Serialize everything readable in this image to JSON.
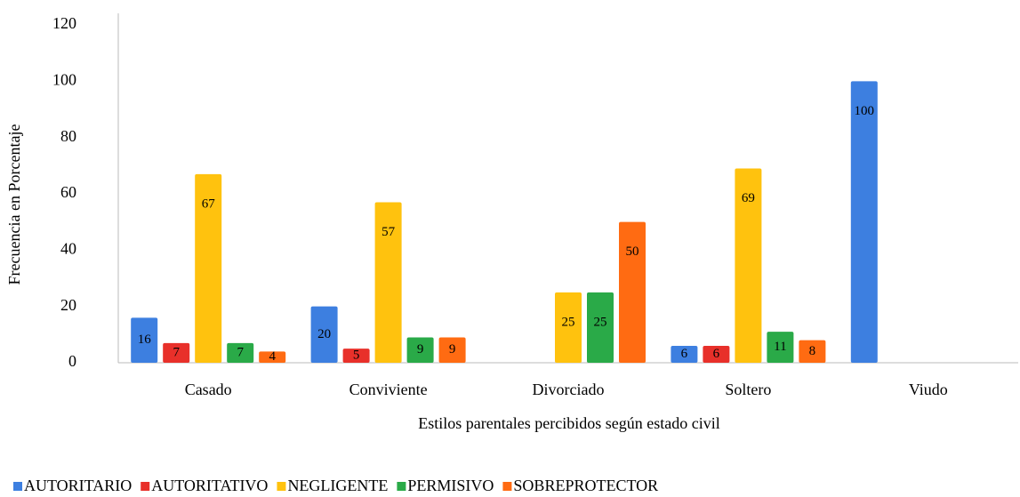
{
  "chart_data": {
    "type": "bar",
    "x_label": "Estilos parentales percibidos según estado civil",
    "y_label": "Frecuencia en Porcentaje",
    "categories": [
      "Casado",
      "Conviviente",
      "Divorciado",
      "Soltero",
      "Viudo"
    ],
    "series": [
      {
        "name": "AUTORITARIO",
        "color": "#3d7fe0",
        "values": [
          16,
          20,
          null,
          6,
          100
        ]
      },
      {
        "name": "AUTORITATIVO",
        "color": "#e8302a",
        "values": [
          7,
          5,
          null,
          6,
          null
        ]
      },
      {
        "name": "NEGLIGENTE",
        "color": "#ffc20e",
        "values": [
          67,
          57,
          25,
          69,
          null
        ]
      },
      {
        "name": "PERMISIVO",
        "color": "#2aaa48",
        "values": [
          7,
          9,
          25,
          11,
          null
        ]
      },
      {
        "name": "SOBREPROTECTOR",
        "color": "#ff6b12",
        "values": [
          4,
          9,
          50,
          8,
          null
        ]
      }
    ],
    "ylim": [
      0,
      120
    ],
    "yticks": [
      0,
      20,
      40,
      60,
      80,
      100,
      120
    ],
    "legend": "bottom"
  }
}
